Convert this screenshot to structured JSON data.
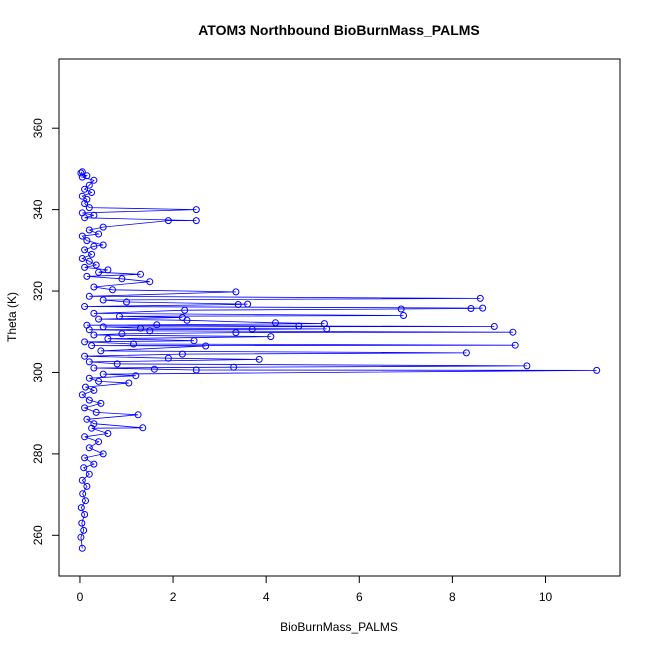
{
  "chart_data": {
    "type": "scatter",
    "title": "ATOM3 Northbound BioBurnMass_PALMS",
    "xlabel": "BioBurnMass_PALMS",
    "ylabel": "Theta (K)",
    "xlim": [
      -0.45,
      11.6
    ],
    "ylim": [
      250,
      377
    ],
    "xticks": [
      0,
      2,
      4,
      6,
      8,
      10
    ],
    "yticks": [
      260,
      280,
      300,
      320,
      340,
      360
    ],
    "series_color": "#0000ff",
    "marker": "open-circle",
    "connected": true,
    "series": [
      {
        "points": [
          [
            0.05,
            256.8
          ],
          [
            0.02,
            259.5
          ],
          [
            0.08,
            261.2
          ],
          [
            0.04,
            263.0
          ],
          [
            0.1,
            265.1
          ],
          [
            0.03,
            266.8
          ],
          [
            0.12,
            268.5
          ],
          [
            0.06,
            270.2
          ],
          [
            0.15,
            272.0
          ],
          [
            0.05,
            273.5
          ],
          [
            0.2,
            275.0
          ],
          [
            0.08,
            276.6
          ],
          [
            0.3,
            277.5
          ],
          [
            0.1,
            279.0
          ],
          [
            0.5,
            280.0
          ],
          [
            0.2,
            281.5
          ],
          [
            0.4,
            283.0
          ],
          [
            0.1,
            284.2
          ],
          [
            0.6,
            285.0
          ],
          [
            0.25,
            286.3
          ],
          [
            1.35,
            286.4
          ],
          [
            0.3,
            287.4
          ],
          [
            0.15,
            288.5
          ],
          [
            1.25,
            289.6
          ],
          [
            0.35,
            290.2
          ],
          [
            0.1,
            291.3
          ],
          [
            0.45,
            292.4
          ],
          [
            0.2,
            293.2
          ],
          [
            0.05,
            294.5
          ],
          [
            0.3,
            295.6
          ],
          [
            0.12,
            296.4
          ],
          [
            1.05,
            297.4
          ],
          [
            0.4,
            297.8
          ],
          [
            0.2,
            298.6
          ],
          [
            1.2,
            299.2
          ],
          [
            0.5,
            299.6
          ],
          [
            11.1,
            300.5
          ],
          [
            2.5,
            300.6
          ],
          [
            1.6,
            300.8
          ],
          [
            0.3,
            301.1
          ],
          [
            3.3,
            301.3
          ],
          [
            9.6,
            301.6
          ],
          [
            0.8,
            302.1
          ],
          [
            0.2,
            302.6
          ],
          [
            3.85,
            303.2
          ],
          [
            1.9,
            303.5
          ],
          [
            0.1,
            304.0
          ],
          [
            2.2,
            304.5
          ],
          [
            8.3,
            304.8
          ],
          [
            0.45,
            305.3
          ],
          [
            2.7,
            306.5
          ],
          [
            0.25,
            306.6
          ],
          [
            9.35,
            306.7
          ],
          [
            1.15,
            307.0
          ],
          [
            0.1,
            307.5
          ],
          [
            2.45,
            307.8
          ],
          [
            0.6,
            308.3
          ],
          [
            4.1,
            308.8
          ],
          [
            0.3,
            309.2
          ],
          [
            0.9,
            309.5
          ],
          [
            3.35,
            309.8
          ],
          [
            9.3,
            309.9
          ],
          [
            1.5,
            310.2
          ],
          [
            0.2,
            310.5
          ],
          [
            3.7,
            310.6
          ],
          [
            5.3,
            310.7
          ],
          [
            1.3,
            310.9
          ],
          [
            0.5,
            311.2
          ],
          [
            8.9,
            311.3
          ],
          [
            4.7,
            311.4
          ],
          [
            0.15,
            311.6
          ],
          [
            1.65,
            311.7
          ],
          [
            5.25,
            312.0
          ],
          [
            4.2,
            312.2
          ],
          [
            2.3,
            312.8
          ],
          [
            0.4,
            313.1
          ],
          [
            2.2,
            313.5
          ],
          [
            0.85,
            313.8
          ],
          [
            6.95,
            314.0
          ],
          [
            0.3,
            314.5
          ],
          [
            2.25,
            315.3
          ],
          [
            6.9,
            315.6
          ],
          [
            8.4,
            315.7
          ],
          [
            8.65,
            315.8
          ],
          [
            0.1,
            316.2
          ],
          [
            3.4,
            316.7
          ],
          [
            3.6,
            316.8
          ],
          [
            1.0,
            317.3
          ],
          [
            0.5,
            317.8
          ],
          [
            8.6,
            318.2
          ],
          [
            0.2,
            318.7
          ],
          [
            3.35,
            319.8
          ],
          [
            0.7,
            320.3
          ],
          [
            0.3,
            321.0
          ],
          [
            1.5,
            322.3
          ],
          [
            0.9,
            323.0
          ],
          [
            0.15,
            323.6
          ],
          [
            1.3,
            324.1
          ],
          [
            0.4,
            324.6
          ],
          [
            0.6,
            325.2
          ],
          [
            0.1,
            325.8
          ],
          [
            0.35,
            326.4
          ],
          [
            0.2,
            327.3
          ],
          [
            0.05,
            328.0
          ],
          [
            0.25,
            329.0
          ],
          [
            0.1,
            330.1
          ],
          [
            0.3,
            331.0
          ],
          [
            0.5,
            331.3
          ],
          [
            0.15,
            332.4
          ],
          [
            0.05,
            333.5
          ],
          [
            0.4,
            334.0
          ],
          [
            0.2,
            335.0
          ],
          [
            0.5,
            335.7
          ],
          [
            1.9,
            337.3
          ],
          [
            2.5,
            337.3
          ],
          [
            0.1,
            338.0
          ],
          [
            0.3,
            338.6
          ],
          [
            0.05,
            339.2
          ],
          [
            2.5,
            340.0
          ],
          [
            0.2,
            340.5
          ],
          [
            0.1,
            341.5
          ],
          [
            0.15,
            342.5
          ],
          [
            0.05,
            343.3
          ],
          [
            0.25,
            344.2
          ],
          [
            0.1,
            345.0
          ],
          [
            0.2,
            346.0
          ],
          [
            0.3,
            347.2
          ],
          [
            0.05,
            348.0
          ],
          [
            0.15,
            348.3
          ],
          [
            0.02,
            349.0
          ],
          [
            0.05,
            349.3
          ]
        ]
      }
    ]
  }
}
